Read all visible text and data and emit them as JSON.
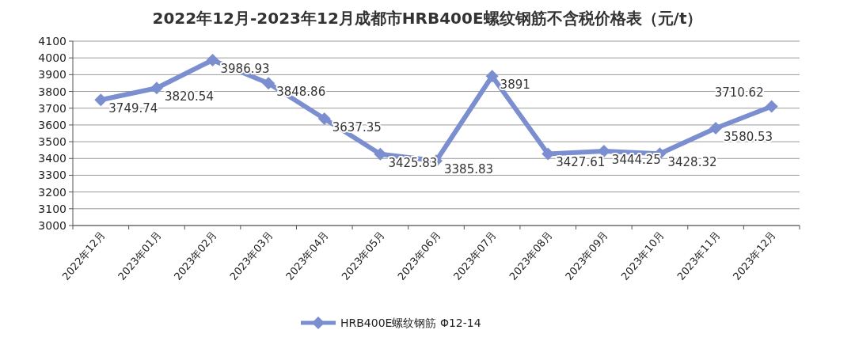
{
  "chart_data": {
    "type": "line",
    "title": "2022年12月-2023年12月成都市HRB400E螺纹钢筋不含税价格表（元/t）",
    "categories": [
      "2022年12月",
      "2023年01月",
      "2023年02月",
      "2023年03月",
      "2023年04月",
      "2023年05月",
      "2023年06月",
      "2023年07月",
      "2023年08月",
      "2023年09月",
      "2023年10月",
      "2023年11月",
      "2023年12月"
    ],
    "series": [
      {
        "name": "HRB400E螺纹钢筋 Φ12-14",
        "color": "#7b8fd0",
        "values": [
          3749.74,
          3820.54,
          3986.93,
          3848.86,
          3637.35,
          3425.83,
          3385.83,
          3891,
          3427.61,
          3444.25,
          3428.32,
          3580.53,
          3710.62
        ]
      }
    ],
    "ylim": [
      3000,
      4100
    ],
    "yticks": [
      3000,
      3100,
      3200,
      3300,
      3400,
      3500,
      3600,
      3700,
      3800,
      3900,
      4000,
      4100
    ],
    "grid": "y",
    "legend": "bottom",
    "marker": "diamond",
    "line_style": "solid",
    "data_labels": true
  }
}
